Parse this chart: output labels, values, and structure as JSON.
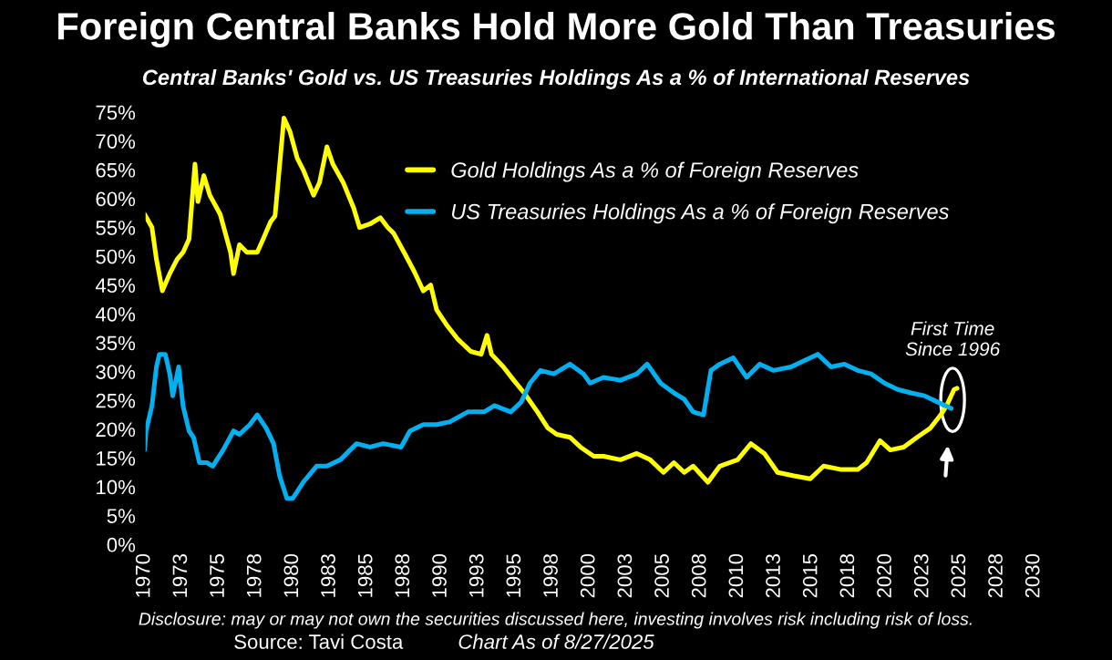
{
  "chart_data": {
    "type": "line",
    "title": "Foreign Central Banks Hold More Gold Than Treasuries",
    "subtitle": "Central Banks' Gold vs. US Treasuries Holdings As a % of International Reserves",
    "xlim": [
      1970,
      2030
    ],
    "xticks": [
      1970,
      {
        "value": 1972.5,
        "label": "1973"
      },
      1975,
      {
        "value": 1977.5,
        "label": "1978"
      },
      1980,
      {
        "value": 1982.5,
        "label": "1983"
      },
      1985,
      {
        "value": 1987.5,
        "label": "1988"
      },
      1990,
      {
        "value": 1992.5,
        "label": "1993"
      },
      1995,
      {
        "value": 1997.5,
        "label": "1998"
      },
      2000,
      {
        "value": 2002.5,
        "label": "2003"
      },
      2005,
      {
        "value": 2007.5,
        "label": "2008"
      },
      2010,
      {
        "value": 2012.5,
        "label": "2013"
      },
      2015,
      {
        "value": 2017.5,
        "label": "2018"
      },
      2020,
      {
        "value": 2022.5,
        "label": "2023"
      },
      2025,
      {
        "value": 2027.5,
        "label": "2028"
      },
      2030
    ],
    "ylim": [
      0,
      75
    ],
    "yticks": [
      {
        "value": 0,
        "label": "0%"
      },
      {
        "value": 5,
        "label": "5%"
      },
      {
        "value": 10,
        "label": "10%"
      },
      {
        "value": 15,
        "label": "15%"
      },
      {
        "value": 20,
        "label": "20%"
      },
      {
        "value": 25,
        "label": "25%"
      },
      {
        "value": 30,
        "label": "30%"
      },
      {
        "value": 35,
        "label": "35%"
      },
      {
        "value": 40,
        "label": "40%"
      },
      {
        "value": 45,
        "label": "45%"
      },
      {
        "value": 50,
        "label": "50%"
      },
      {
        "value": 55,
        "label": "55%"
      },
      {
        "value": 60,
        "label": "60%"
      },
      {
        "value": 65,
        "label": "65%"
      },
      {
        "value": 70,
        "label": "70%"
      },
      {
        "value": 75,
        "label": "75%"
      }
    ],
    "grid": false,
    "legend": "top",
    "series": [
      {
        "name": "Gold Holdings As a % of Foreign Reserves",
        "color": "#ffff00",
        "x": [
          1970.0,
          1970.5,
          1970.8,
          1971.2,
          1971.7,
          1972.2,
          1972.6,
          1973.0,
          1973.4,
          1973.6,
          1974.0,
          1974.4,
          1975.1,
          1975.8,
          1976.0,
          1976.4,
          1976.9,
          1977.6,
          1978.0,
          1978.5,
          1978.8,
          1979.4,
          1979.8,
          1980.3,
          1980.7,
          1981.4,
          1981.8,
          1982.3,
          1982.7,
          1983.4,
          1984.1,
          1984.5,
          1985.2,
          1985.9,
          1986.4,
          1986.8,
          1987.5,
          1988.2,
          1988.8,
          1989.3,
          1989.7,
          1990.4,
          1991.1,
          1992.0,
          1992.7,
          1993.1,
          1993.4,
          1994.2,
          1994.9,
          1995.6,
          1996.5,
          1997.2,
          1997.8,
          1998.7,
          1999.4,
          2000.3,
          2000.95,
          2002.1,
          2003.2,
          2004.1,
          2005.0,
          2005.7,
          2006.4,
          2007.0,
          2008.0,
          2008.8,
          2010.0,
          2010.9,
          2011.8,
          2012.7,
          2013.8,
          2014.9,
          2015.8,
          2017.0,
          2018.1,
          2018.7,
          2019.6,
          2020.3,
          2021.2,
          2022.1,
          2023.0,
          2023.7,
          2024.1,
          2024.6,
          2024.8
        ],
        "values": [
          57.3,
          55,
          49.5,
          44,
          47,
          49.5,
          50.7,
          53,
          66,
          59.5,
          64,
          60.6,
          57.3,
          50.7,
          47,
          52,
          50.7,
          50.7,
          53,
          56,
          57,
          74,
          71.7,
          67,
          65,
          60.6,
          62.8,
          69,
          66,
          62.8,
          58.4,
          55,
          55.6,
          56.7,
          55,
          54,
          50.7,
          47.3,
          44,
          45,
          40.7,
          38,
          35.7,
          33.5,
          33,
          36.3,
          33,
          30.8,
          28.5,
          26.3,
          23,
          20.2,
          19.1,
          18.6,
          16.9,
          15.3,
          15.3,
          14.7,
          15.8,
          14.7,
          12.5,
          14.2,
          12.5,
          13.6,
          10.8,
          13.6,
          14.7,
          17.5,
          15.8,
          12.5,
          11.9,
          11.4,
          13.6,
          13,
          13,
          14.2,
          18,
          16.4,
          16.9,
          18.6,
          20.2,
          22.5,
          24.1,
          26.9,
          27.1
        ]
      },
      {
        "name": "US Treasuries Holdings As a % of Foreign Reserves",
        "color": "#00b0f0",
        "x": [
          1970.0,
          1970.1,
          1970.5,
          1970.8,
          1971.0,
          1971.4,
          1971.7,
          1971.9,
          1972.3,
          1972.6,
          1973.0,
          1973.3,
          1973.7,
          1974.2,
          1974.6,
          1975.3,
          1976.0,
          1976.4,
          1977.1,
          1977.6,
          1978.2,
          1978.7,
          1979.1,
          1979.6,
          1980.0,
          1980.7,
          1981.6,
          1982.3,
          1983.2,
          1984.3,
          1985.2,
          1986.1,
          1987.3,
          1987.9,
          1988.8,
          1989.7,
          1990.6,
          1991.8,
          1992.9,
          1993.6,
          1994.7,
          1995.4,
          1996.0,
          1996.7,
          1997.6,
          1998.7,
          1999.6,
          2000.05,
          2000.95,
          2002.1,
          2003.2,
          2003.9,
          2004.8,
          2005.7,
          2006.4,
          2007.0,
          2007.7,
          2008.2,
          2008.8,
          2009.7,
          2010.6,
          2011.5,
          2012.4,
          2013.6,
          2014.5,
          2015.4,
          2016.3,
          2017.2,
          2018.1,
          2019.0,
          2019.9,
          2020.8,
          2021.7,
          2022.6,
          2023.5,
          2024.4
        ],
        "values": [
          16.4,
          19.7,
          24.1,
          30.8,
          33,
          33,
          29.6,
          25.8,
          30.8,
          24,
          19.7,
          18.6,
          14.2,
          14.2,
          13.6,
          16.4,
          19.7,
          19.1,
          20.8,
          22.5,
          20.2,
          17.5,
          12,
          8,
          8,
          10.8,
          13.6,
          13.6,
          14.7,
          17.5,
          16.9,
          17.5,
          16.9,
          19.7,
          20.8,
          20.8,
          21.3,
          23,
          23,
          24.1,
          23,
          24.7,
          28,
          30.2,
          29.6,
          31.3,
          29.6,
          28,
          29,
          28.5,
          29.6,
          31.3,
          28,
          26.3,
          25.2,
          23,
          22.5,
          30.2,
          31.3,
          32.4,
          29,
          31.3,
          30.2,
          30.8,
          31.9,
          33,
          30.8,
          31.3,
          30.2,
          29.6,
          28,
          26.9,
          26.3,
          25.8,
          24.7,
          23.6
        ]
      }
    ],
    "annotations": [
      "First Time\nSince 1996",
      "Disclosure: may or may not own the securities discussed here, investing involves risk including risk of loss.",
      "Source: Tavi Costa",
      "Chart As of 8/27/2025"
    ]
  }
}
